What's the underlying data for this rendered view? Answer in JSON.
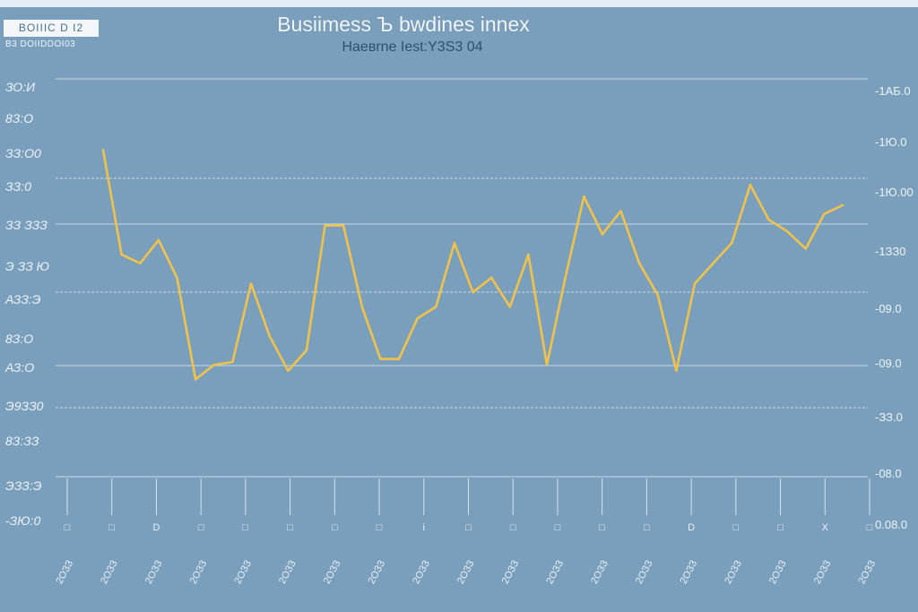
{
  "header": {
    "badge": "ВOIIIC D I2",
    "badge_sub": "B3 DOIIDDOI03",
    "title": "Busiimess Ъ bwdines innex",
    "subtitle": "Hаевrne Iest:Y3S3 04"
  },
  "colors": {
    "background": "#7a9fbd",
    "line": "#f0c24a",
    "grid": "#d6e3ee",
    "text": "#eef3f8"
  },
  "chart_data": {
    "type": "line",
    "title": "Busiimess Ъ bwdines innex",
    "subtitle": "Hаевrne Iest:Y3S3 04",
    "left_ticks": [
      "ЗО:И",
      "8З:О",
      "ЗЗ:О0",
      "ЗЗ:0",
      "ЗЗ\nЗЗЗ",
      "Э ЗЗ Ю",
      "АЗЗ:Э",
      "8З:О",
      "АЗ:О",
      "Э9ЗЗ0",
      "8З:ЗЗ",
      "ЭЗЗ:Э",
      "-ЗЮ:0"
    ],
    "right_ticks": [
      "-1АБ.0",
      "-1Ю.0",
      "-1Ю.00",
      "-1ЗЗ0",
      "-09.0",
      "-09.0",
      "-ЗЗ.0",
      "-08.0",
      "0.08.0"
    ],
    "x_tick_marks": [
      "□",
      "□",
      "D",
      "□",
      "□",
      "□",
      "□",
      "□",
      "i",
      "□",
      "□",
      "□",
      "□",
      "□",
      "D",
      "□",
      "□",
      "X",
      "□"
    ],
    "x_labels": [
      "2ОЗЗ",
      "2ОЗЗ",
      "2ОЗЗ",
      "2ОЗЗ",
      "2ОЗЗ",
      "2ОЗЗ",
      "2ОЗЗ",
      "2ОЗЗ",
      "2ОЗЗ",
      "2ОЗЗ",
      "2ОЗЗ",
      "2ОЗЗ",
      "2ОЗЗ",
      "2ОЗЗ",
      "2ОЗЗ",
      "2ОЗЗ",
      "2ОЗЗ",
      "2ОЗЗ",
      "2ОЗЗ"
    ],
    "ylim": [
      0,
      100
    ],
    "grid": true,
    "series": [
      {
        "values": [
          94,
          58,
          55,
          63,
          50,
          15,
          20,
          21,
          48,
          30,
          18,
          25,
          68,
          68,
          40,
          22,
          22,
          36,
          40,
          62,
          45,
          50,
          40,
          58,
          20,
          50,
          78,
          65,
          73,
          55,
          44,
          18,
          48,
          55,
          62,
          82,
          70,
          66,
          60,
          72,
          75
        ]
      }
    ]
  }
}
